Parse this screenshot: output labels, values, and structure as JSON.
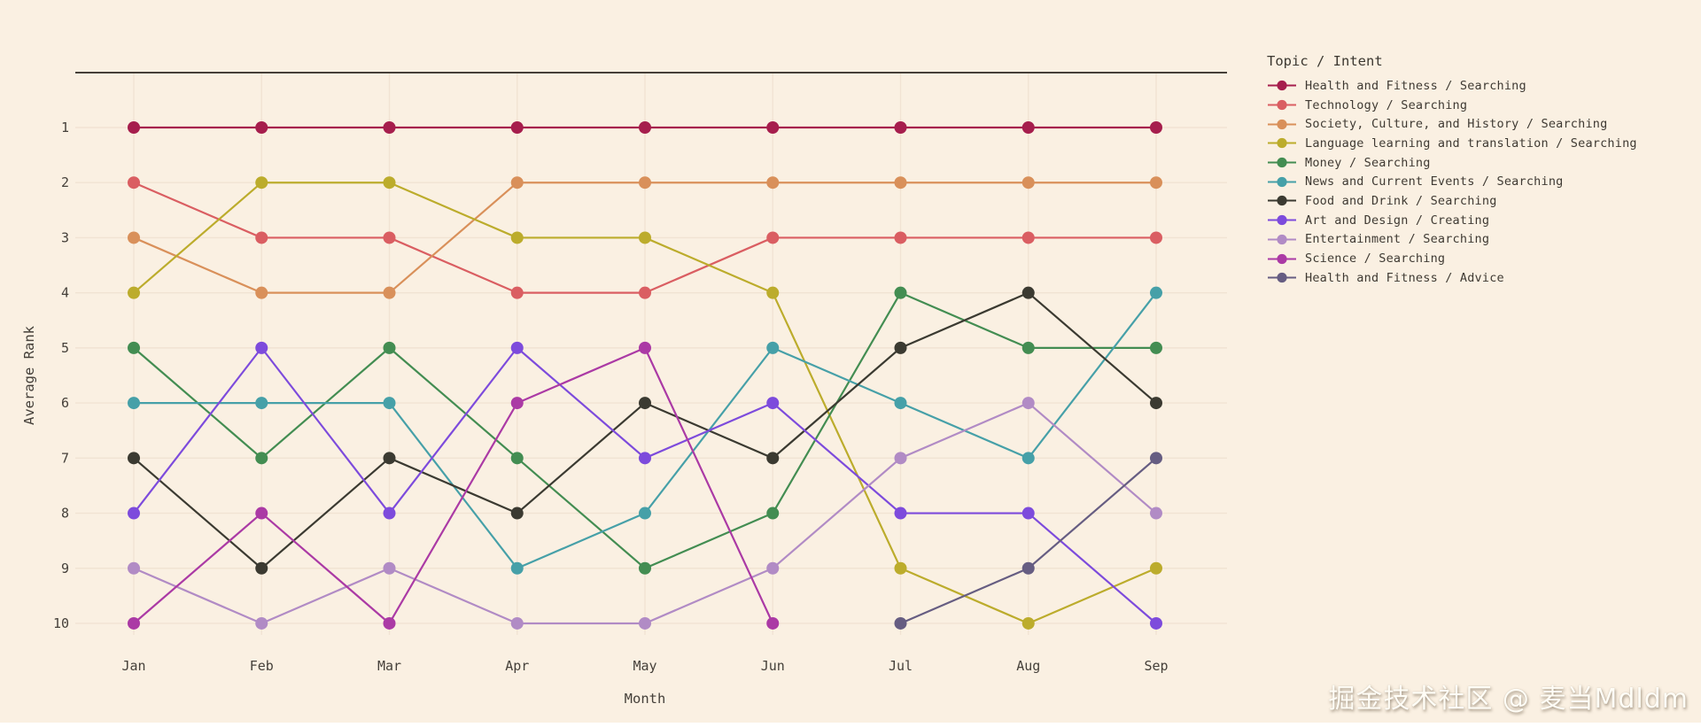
{
  "watermark": "掘金技术社区 @ 麦当Mdldm",
  "colors": {
    "background": "#faf0e2",
    "grid": "#f1e3d3",
    "axis_line": "#453f38",
    "text": "#45403a"
  },
  "chart_data": {
    "type": "line",
    "subtype": "bump-rank-chart",
    "title": "",
    "xlabel": "Month",
    "ylabel": "Average Rank",
    "legend_title": "Topic / Intent",
    "legend_position": "right",
    "grid": true,
    "y_inverted": true,
    "ylim": [
      1,
      10
    ],
    "y_ticks": [
      "1",
      "2",
      "3",
      "4",
      "5",
      "6",
      "7",
      "8",
      "9",
      "10"
    ],
    "x": [
      "Jan",
      "Feb",
      "Mar",
      "Apr",
      "May",
      "Jun",
      "Jul",
      "Aug",
      "Sep"
    ],
    "series": [
      {
        "name": "Health and Fitness / Searching",
        "color": "#a61e4d",
        "values": [
          1,
          1,
          1,
          1,
          1,
          1,
          1,
          1,
          1
        ]
      },
      {
        "name": "Technology / Searching",
        "color": "#da5e62",
        "values": [
          2,
          3,
          3,
          4,
          4,
          3,
          3,
          3,
          3
        ]
      },
      {
        "name": "Society, Culture, and History / Searching",
        "color": "#d9905a",
        "values": [
          3,
          4,
          4,
          2,
          2,
          2,
          2,
          2,
          2
        ]
      },
      {
        "name": "Language learning and translation / Searching",
        "color": "#bcac2c",
        "values": [
          4,
          2,
          2,
          3,
          3,
          4,
          9,
          10,
          9
        ]
      },
      {
        "name": "Money / Searching",
        "color": "#438d52",
        "values": [
          5,
          7,
          5,
          7,
          9,
          8,
          4,
          5,
          5
        ]
      },
      {
        "name": "News and Current Events / Searching",
        "color": "#46a0a8",
        "values": [
          6,
          6,
          6,
          9,
          8,
          5,
          6,
          7,
          4
        ]
      },
      {
        "name": "Food and Drink / Searching",
        "color": "#3b3a31",
        "values": [
          7,
          9,
          7,
          8,
          6,
          7,
          5,
          4,
          6
        ]
      },
      {
        "name": "Art and Design / Creating",
        "color": "#7d4bdc",
        "values": [
          8,
          5,
          8,
          5,
          7,
          6,
          8,
          8,
          10
        ]
      },
      {
        "name": "Entertainment / Searching",
        "color": "#b18bc5",
        "values": [
          9,
          10,
          9,
          10,
          10,
          9,
          7,
          6,
          8
        ]
      },
      {
        "name": "Science / Searching",
        "color": "#ab3aa5",
        "values": [
          10,
          8,
          10,
          6,
          5,
          10,
          null,
          null,
          null
        ]
      },
      {
        "name": "Health and Fitness / Advice",
        "color": "#665d82",
        "values": [
          null,
          null,
          null,
          null,
          null,
          null,
          10,
          9,
          7
        ]
      }
    ]
  }
}
